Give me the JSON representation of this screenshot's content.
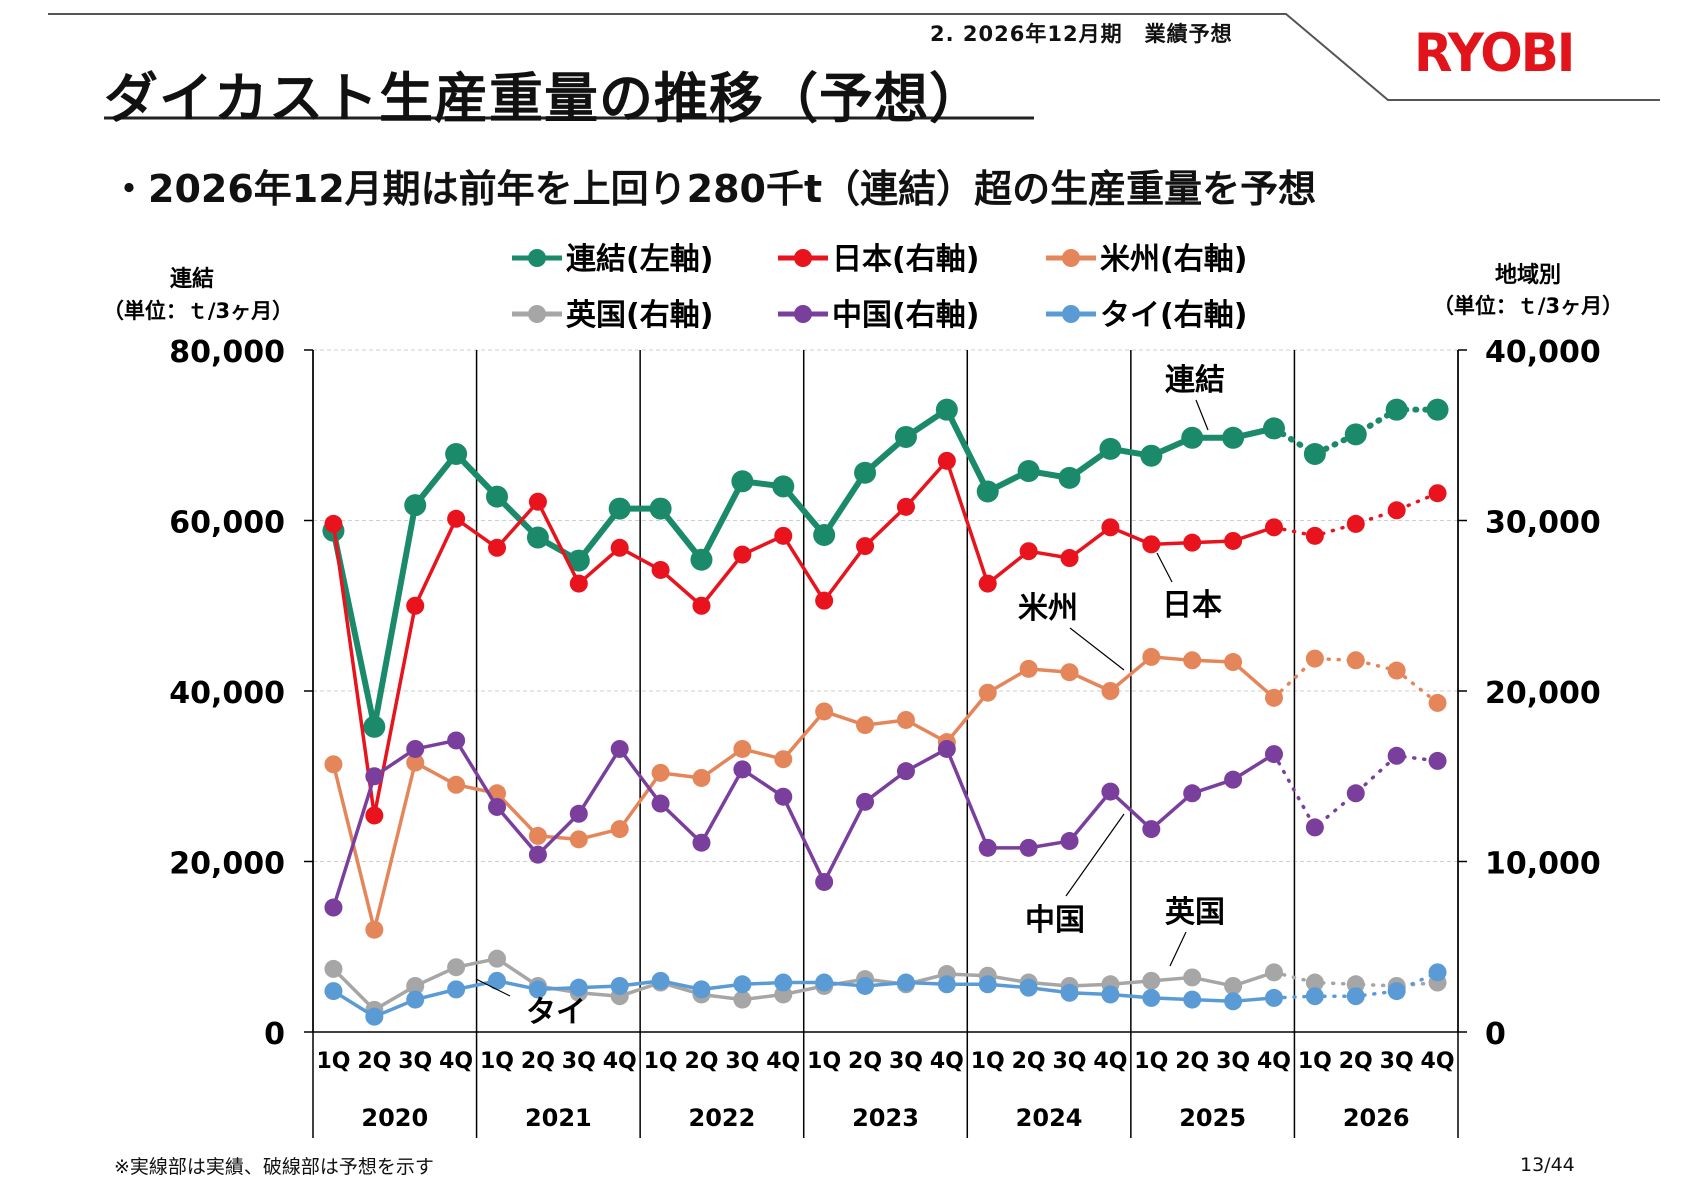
{
  "header": {
    "section": "2. 2026年12月期　業績予想",
    "logo": "RYOBI",
    "title": "ダイカスト生産重量の推移（予想）",
    "subtitle": "・2026年12月期は前年を上回り280千t（連結）超の生産重量を予想"
  },
  "footer": {
    "note": "※実線部は実績、破線部は予想を示す",
    "page": "13/44"
  },
  "chart_data": {
    "type": "line",
    "left_axis": {
      "title": [
        "連結",
        "（単位：ｔ/3ヶ月）"
      ],
      "ticks": [
        "0",
        "20,000",
        "40,000",
        "60,000",
        "80,000"
      ],
      "ylim": [
        0,
        80000
      ]
    },
    "right_axis": {
      "title": [
        "地域別",
        "（単位：ｔ/3ヶ月）"
      ],
      "ticks": [
        "0",
        "10,000",
        "20,000",
        "30,000",
        "40,000"
      ],
      "ylim": [
        0,
        40000
      ]
    },
    "quarters": [
      "1Q",
      "2Q",
      "3Q",
      "4Q",
      "1Q",
      "2Q",
      "3Q",
      "4Q",
      "1Q",
      "2Q",
      "3Q",
      "4Q",
      "1Q",
      "2Q",
      "3Q",
      "4Q",
      "1Q",
      "2Q",
      "3Q",
      "4Q",
      "1Q",
      "2Q",
      "3Q",
      "4Q",
      "1Q",
      "2Q",
      "3Q",
      "4Q"
    ],
    "years": [
      "2020",
      "2021",
      "2022",
      "2023",
      "2024",
      "2025",
      "2026"
    ],
    "actual_points": 24,
    "grid": true,
    "legend_position": "top",
    "series": [
      {
        "name": "連結(左軸)",
        "label": "連結",
        "axis": "left",
        "color": "#1b8a6b",
        "marker": 11,
        "values": [
          58800,
          35800,
          61800,
          67800,
          62800,
          58000,
          55300,
          61400,
          61400,
          55400,
          64600,
          64000,
          58300,
          65600,
          69800,
          73000,
          63400,
          65800,
          65000,
          68400,
          67600,
          69700,
          69700,
          70800,
          67800,
          70100,
          73000,
          73000
        ]
      },
      {
        "name": "日本(右軸)",
        "label": "日本",
        "axis": "right",
        "color": "#e8131c",
        "marker": 9,
        "values": [
          29800,
          12700,
          25000,
          30100,
          28400,
          31100,
          26300,
          28400,
          27100,
          25000,
          28000,
          29100,
          25300,
          28500,
          30800,
          33500,
          26300,
          28200,
          27800,
          29600,
          28600,
          28700,
          28800,
          29600,
          29100,
          29800,
          30600,
          31600
        ]
      },
      {
        "name": "米州(右軸)",
        "label": "米州",
        "axis": "right",
        "color": "#e4865a",
        "marker": 9,
        "values": [
          15700,
          6000,
          15800,
          14500,
          14000,
          11500,
          11300,
          11900,
          15200,
          14900,
          16600,
          16000,
          18800,
          18000,
          18300,
          17000,
          19900,
          21300,
          21100,
          20000,
          22000,
          21800,
          21700,
          19600,
          21900,
          21800,
          21200,
          19300
        ]
      },
      {
        "name": "英国(右軸)",
        "label": "英国",
        "axis": "right",
        "color": "#a6a6a6",
        "marker": 9,
        "values": [
          3700,
          1300,
          2700,
          3800,
          4300,
          2700,
          2300,
          2100,
          2900,
          2200,
          1900,
          2200,
          2700,
          3100,
          2800,
          3400,
          3300,
          2900,
          2700,
          2800,
          3000,
          3200,
          2700,
          3500,
          2900,
          2800,
          2700,
          2900
        ]
      },
      {
        "name": "中国(右軸)",
        "label": "中国",
        "axis": "right",
        "color": "#7a3f9d",
        "marker": 9,
        "values": [
          7300,
          15000,
          16600,
          17100,
          13200,
          10400,
          12800,
          16600,
          13400,
          11100,
          15400,
          13800,
          8800,
          13500,
          15300,
          16600,
          10800,
          10800,
          11200,
          14100,
          11900,
          14000,
          14800,
          16300,
          12000,
          14000,
          16200,
          15900
        ]
      },
      {
        "name": "タイ(右軸)",
        "label": "タイ",
        "axis": "right",
        "color": "#5b9bd5",
        "marker": 9,
        "values": [
          2400,
          900,
          1900,
          2500,
          3000,
          2500,
          2600,
          2700,
          3000,
          2500,
          2800,
          2900,
          2900,
          2700,
          2900,
          2800,
          2800,
          2600,
          2300,
          2200,
          2000,
          1900,
          1800,
          2000,
          2100,
          2100,
          2400,
          3500
        ]
      }
    ],
    "annotations": [
      "連結",
      "日本",
      "米州",
      "中国",
      "英国",
      "タイ"
    ]
  }
}
